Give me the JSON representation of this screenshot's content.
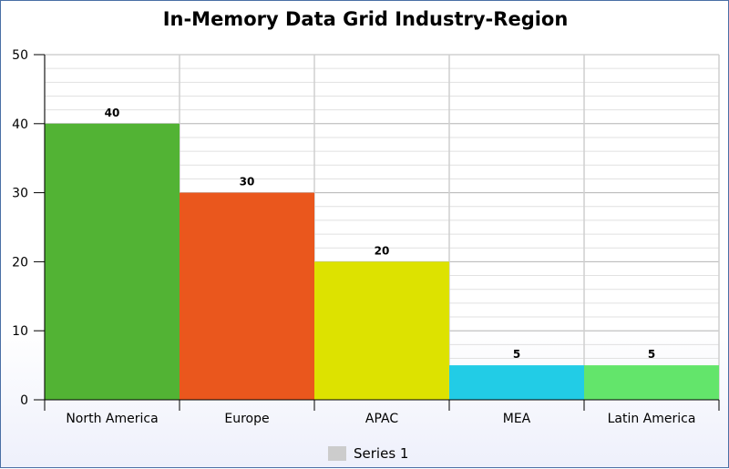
{
  "chart_data": {
    "type": "bar",
    "title": "In-Memory Data Grid Industry-Region",
    "categories": [
      "North America",
      "Europe",
      "APAC",
      "MEA",
      "Latin America"
    ],
    "series": [
      {
        "name": "Series 1",
        "values": [
          40,
          30,
          20,
          5,
          5
        ]
      }
    ],
    "bar_colors": [
      "#52b334",
      "#ea571d",
      "#dde200",
      "#22cce6",
      "#63e56b"
    ],
    "legend_swatch_color": "#cccccc",
    "ylim": [
      0,
      50
    ],
    "yticks": [
      0,
      10,
      20,
      30,
      40,
      50
    ],
    "minor_gridlines_per_major": 5,
    "grid": true,
    "legend_position": "bottom-center",
    "xlabel": "",
    "ylabel": ""
  }
}
